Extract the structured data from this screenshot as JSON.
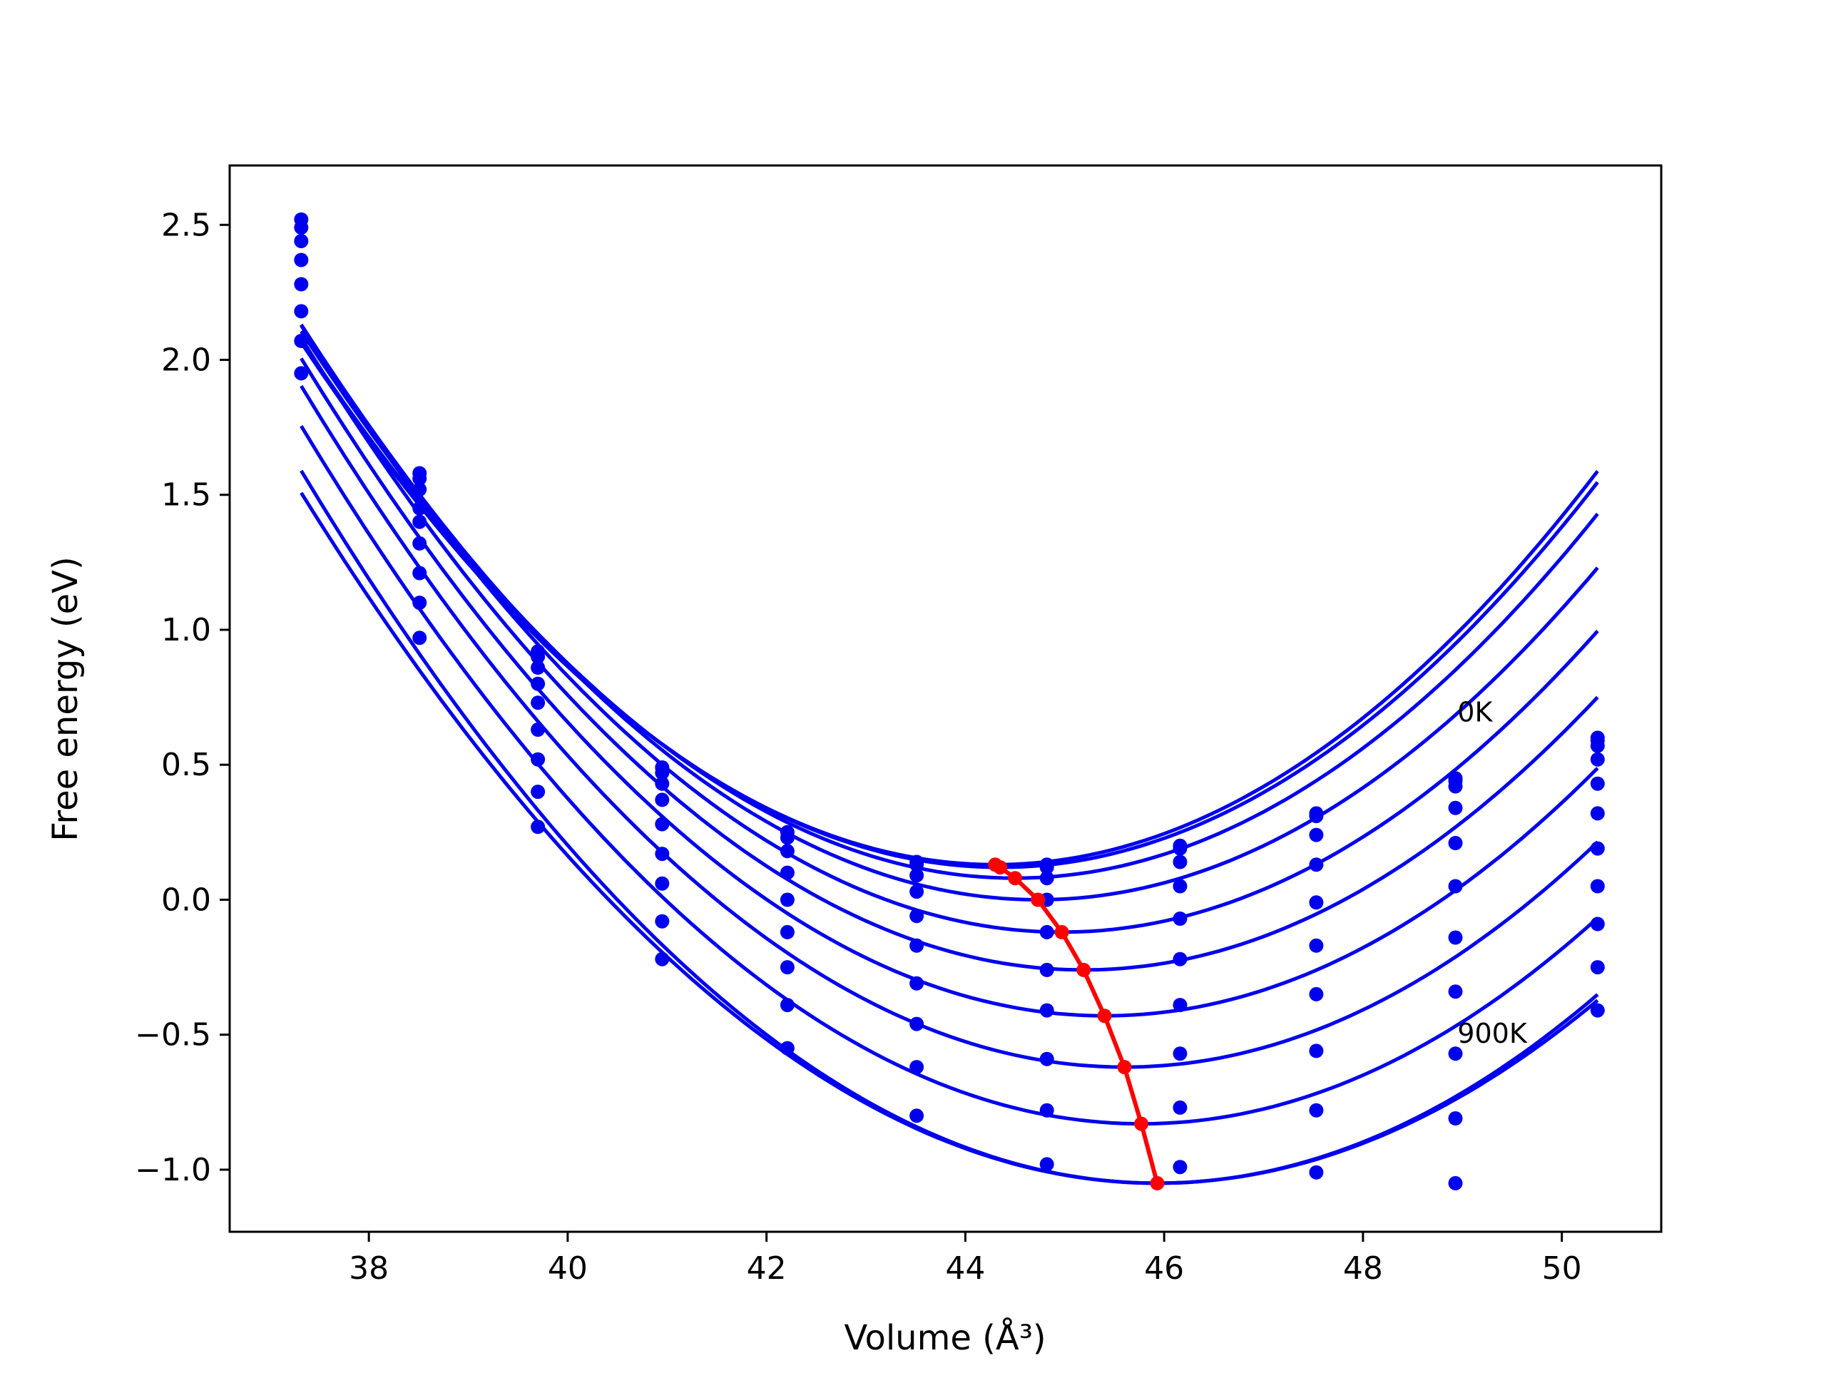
{
  "chart_data": {
    "type": "scatter",
    "title": "",
    "xlabel": "Volume (Å³)",
    "ylabel": "Free energy (eV)",
    "xlim": [
      36.6,
      51.0
    ],
    "ylim": [
      -1.23,
      2.72
    ],
    "x_ticks": [
      38,
      40,
      42,
      44,
      46,
      48,
      50
    ],
    "y_ticks": [
      2.5,
      2.0,
      1.5,
      1.0,
      0.5,
      0.0,
      -0.5,
      -1.0
    ],
    "y_tick_labels": [
      "2.5",
      "2.0",
      "1.5",
      "1.0",
      "0.5",
      "0.0",
      "−0.5",
      "−1.0"
    ],
    "grid": false,
    "annotations": [
      {
        "text": "0K",
        "x": 48.95,
        "y": 0.66
      },
      {
        "text": "900K",
        "x": 48.95,
        "y": -0.53
      }
    ],
    "colors": {
      "series": "#0000ee",
      "minimum_path": "#ff0000",
      "axes": "#000000"
    },
    "volumes": [
      37.32,
      38.51,
      39.7,
      40.95,
      42.21,
      43.51,
      44.82,
      46.16,
      47.53,
      48.93,
      50.36
    ],
    "series": [
      {
        "energies": [
          2.52,
          1.58,
          0.92,
          0.49,
          0.25,
          0.14,
          0.13,
          0.2,
          0.32,
          0.45,
          0.6
        ],
        "fit": {
          "a": 0.0397,
          "v0": 44.3,
          "e0": 0.13
        }
      },
      {
        "energies": [
          2.49,
          1.56,
          0.9,
          0.47,
          0.23,
          0.13,
          0.12,
          0.19,
          0.31,
          0.44,
          0.59
        ],
        "fit": {
          "a": 0.0395,
          "v0": 44.35,
          "e0": 0.12
        }
      },
      {
        "energies": [
          2.44,
          1.52,
          0.86,
          0.43,
          0.18,
          0.09,
          0.08,
          0.14,
          0.24,
          0.42,
          0.57
        ],
        "fit": {
          "a": 0.0393,
          "v0": 44.5,
          "e0": 0.08
        }
      },
      {
        "energies": [
          2.37,
          1.45,
          0.8,
          0.37,
          0.1,
          0.03,
          0.0,
          0.05,
          0.13,
          0.34,
          0.52
        ],
        "fit": {
          "a": 0.0388,
          "v0": 44.73,
          "e0": 0.0
        }
      },
      {
        "energies": [
          2.28,
          1.4,
          0.73,
          0.28,
          0.0,
          -0.06,
          -0.12,
          -0.07,
          -0.01,
          0.21,
          0.43
        ],
        "fit": {
          "a": 0.0384,
          "v0": 44.97,
          "e0": -0.12
        }
      },
      {
        "energies": [
          2.18,
          1.32,
          0.63,
          0.17,
          -0.12,
          -0.17,
          -0.26,
          -0.22,
          -0.17,
          0.05,
          0.32
        ],
        "fit": {
          "a": 0.0378,
          "v0": 45.19,
          "e0": -0.26
        }
      },
      {
        "energies": [
          2.07,
          1.21,
          0.52,
          0.06,
          -0.25,
          -0.31,
          -0.41,
          -0.39,
          -0.35,
          -0.14,
          0.19
        ],
        "fit": {
          "a": 0.0373,
          "v0": 45.4,
          "e0": -0.43
        }
      },
      {
        "energies": [
          1.95,
          1.1,
          0.4,
          -0.08,
          -0.39,
          -0.46,
          -0.59,
          -0.57,
          -0.56,
          -0.34,
          0.05
        ],
        "fit": {
          "a": 0.0368,
          "v0": 45.6,
          "e0": -0.62
        }
      },
      {
        "energies": [
          null,
          0.97,
          0.27,
          -0.22,
          -0.55,
          -0.62,
          -0.78,
          -0.77,
          -0.78,
          -0.57,
          -0.09
        ],
        "fit": {
          "a": 0.0362,
          "v0": 45.77,
          "e0": -0.83
        }
      },
      {
        "energies": [
          null,
          null,
          null,
          null,
          null,
          -0.8,
          -0.98,
          -0.99,
          -1.01,
          -0.81,
          -0.25
        ],
        "fit": {
          "a": 0.0356,
          "v0": 45.93,
          "e0": -1.05
        }
      },
      {
        "energies": [
          null,
          null,
          null,
          null,
          null,
          null,
          null,
          null,
          null,
          -1.05,
          -0.41
        ],
        "fit": {
          "a": 0.0345,
          "v0": 45.93,
          "e0": -1.05
        }
      }
    ],
    "minimum_path": {
      "x": [
        44.3,
        44.35,
        44.5,
        44.73,
        44.97,
        45.19,
        45.4,
        45.6,
        45.77,
        45.93
      ],
      "y": [
        0.13,
        0.12,
        0.08,
        0.0,
        -0.12,
        -0.26,
        -0.43,
        -0.62,
        -0.83,
        -1.05
      ]
    }
  }
}
